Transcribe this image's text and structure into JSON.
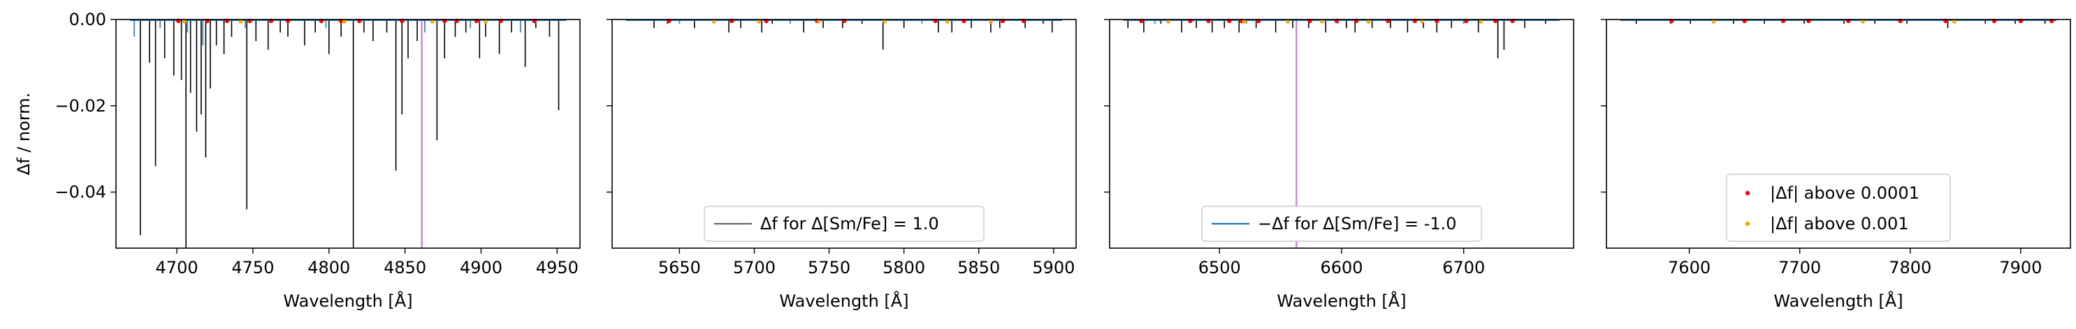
{
  "figure": {
    "ylabel": "Δf / norm.",
    "xlabel": "Wavelength [Å]"
  },
  "colors": {
    "delta_positive": "#000000",
    "delta_negative": "#1f77b4",
    "marker_above_1e4": "#ff0000",
    "marker_above_1e3": "#ffa500",
    "vline": "#cc79d6"
  },
  "chart_data": [
    {
      "type": "line",
      "panel": 1,
      "xlim": [
        4660,
        4965
      ],
      "ylim": [
        -0.053,
        0.0
      ],
      "xticks": [
        4700,
        4750,
        4800,
        4850,
        4900,
        4950
      ],
      "yticks": [
        0.0,
        -0.02,
        -0.04
      ],
      "ytick_labels": [
        "0.00",
        "−0.02",
        "−0.04"
      ],
      "xlabel": "Wavelength [Å]",
      "ylabel": "Δf / norm.",
      "vline": 4861,
      "lines": [
        {
          "x": 4676,
          "y": -0.05
        },
        {
          "x": 4682,
          "y": -0.01
        },
        {
          "x": 4686,
          "y": -0.034
        },
        {
          "x": 4692,
          "y": -0.009
        },
        {
          "x": 4698,
          "y": -0.013
        },
        {
          "x": 4703,
          "y": -0.014
        },
        {
          "x": 4706,
          "y": -0.053
        },
        {
          "x": 4709,
          "y": -0.017
        },
        {
          "x": 4713,
          "y": -0.026
        },
        {
          "x": 4716,
          "y": -0.022
        },
        {
          "x": 4719,
          "y": -0.032
        },
        {
          "x": 4722,
          "y": -0.016
        },
        {
          "x": 4726,
          "y": -0.006
        },
        {
          "x": 4731,
          "y": -0.008
        },
        {
          "x": 4736,
          "y": -0.004
        },
        {
          "x": 4746,
          "y": -0.044
        },
        {
          "x": 4752,
          "y": -0.005
        },
        {
          "x": 4760,
          "y": -0.007
        },
        {
          "x": 4768,
          "y": -0.003
        },
        {
          "x": 4773,
          "y": -0.004
        },
        {
          "x": 4784,
          "y": -0.006
        },
        {
          "x": 4791,
          "y": -0.003
        },
        {
          "x": 4800,
          "y": -0.008
        },
        {
          "x": 4808,
          "y": -0.004
        },
        {
          "x": 4816,
          "y": -0.053
        },
        {
          "x": 4823,
          "y": -0.003
        },
        {
          "x": 4829,
          "y": -0.005
        },
        {
          "x": 4838,
          "y": -0.003
        },
        {
          "x": 4844,
          "y": -0.035
        },
        {
          "x": 4848,
          "y": -0.022
        },
        {
          "x": 4852,
          "y": -0.009
        },
        {
          "x": 4858,
          "y": -0.005
        },
        {
          "x": 4871,
          "y": -0.028
        },
        {
          "x": 4876,
          "y": -0.009
        },
        {
          "x": 4883,
          "y": -0.004
        },
        {
          "x": 4890,
          "y": -0.003
        },
        {
          "x": 4899,
          "y": -0.009
        },
        {
          "x": 4903,
          "y": -0.004
        },
        {
          "x": 4912,
          "y": -0.008
        },
        {
          "x": 4920,
          "y": -0.003
        },
        {
          "x": 4929,
          "y": -0.011
        },
        {
          "x": 4936,
          "y": -0.002
        },
        {
          "x": 4945,
          "y": -0.004
        },
        {
          "x": 4951,
          "y": -0.021
        }
      ],
      "neg_lines": [
        {
          "x": 4672,
          "y": -0.004
        },
        {
          "x": 4689,
          "y": -0.002
        },
        {
          "x": 4707,
          "y": -0.003
        },
        {
          "x": 4717,
          "y": -0.006
        },
        {
          "x": 4745,
          "y": -0.002
        },
        {
          "x": 4798,
          "y": -0.002
        },
        {
          "x": 4863,
          "y": -0.003
        },
        {
          "x": 4893,
          "y": -0.002
        },
        {
          "x": 4926,
          "y": -0.003
        }
      ],
      "red_markers": [
        4701,
        4720,
        4733,
        4748,
        4762,
        4773,
        4795,
        4808,
        4820,
        4848,
        4876,
        4884,
        4897,
        4913,
        4935
      ],
      "orange_markers": [
        4705,
        4742,
        4810,
        4868,
        4903
      ]
    },
    {
      "type": "line",
      "panel": 2,
      "xlim": [
        5605,
        5915
      ],
      "ylim": [
        -0.053,
        0.0
      ],
      "xticks": [
        5650,
        5700,
        5750,
        5800,
        5850,
        5900
      ],
      "xlabel": "Wavelength [Å]",
      "lines": [
        {
          "x": 5633,
          "y": -0.002
        },
        {
          "x": 5642,
          "y": -0.001
        },
        {
          "x": 5660,
          "y": -0.002
        },
        {
          "x": 5683,
          "y": -0.003
        },
        {
          "x": 5691,
          "y": -0.002
        },
        {
          "x": 5705,
          "y": -0.003
        },
        {
          "x": 5712,
          "y": -0.001
        },
        {
          "x": 5733,
          "y": -0.003
        },
        {
          "x": 5746,
          "y": -0.002
        },
        {
          "x": 5759,
          "y": -0.002
        },
        {
          "x": 5772,
          "y": -0.001
        },
        {
          "x": 5786,
          "y": -0.007
        },
        {
          "x": 5800,
          "y": -0.002
        },
        {
          "x": 5823,
          "y": -0.003
        },
        {
          "x": 5832,
          "y": -0.003
        },
        {
          "x": 5845,
          "y": -0.002
        },
        {
          "x": 5858,
          "y": -0.003
        },
        {
          "x": 5864,
          "y": -0.002
        },
        {
          "x": 5881,
          "y": -0.002
        },
        {
          "x": 5893,
          "y": -0.001
        },
        {
          "x": 5899,
          "y": -0.003
        }
      ],
      "neg_lines": [
        {
          "x": 5650,
          "y": -0.001
        },
        {
          "x": 5724,
          "y": -0.001
        },
        {
          "x": 5812,
          "y": -0.001
        }
      ],
      "red_markers": [
        5643,
        5685,
        5708,
        5742,
        5760,
        5821,
        5840,
        5866,
        5880
      ],
      "orange_markers": [
        5673,
        5703,
        5743,
        5787,
        5829,
        5858
      ],
      "legend": {
        "label": "Δf for Δ[Sm/Fe] = 1.0",
        "position": "lower center"
      }
    },
    {
      "type": "line",
      "panel": 3,
      "xlim": [
        6410,
        6790
      ],
      "ylim": [
        -0.053,
        0.0
      ],
      "xticks": [
        6500,
        6600,
        6700
      ],
      "xlabel": "Wavelength [Å]",
      "vline": 6563,
      "lines": [
        {
          "x": 6425,
          "y": -0.002
        },
        {
          "x": 6438,
          "y": -0.003
        },
        {
          "x": 6452,
          "y": -0.001
        },
        {
          "x": 6469,
          "y": -0.003
        },
        {
          "x": 6481,
          "y": -0.002
        },
        {
          "x": 6494,
          "y": -0.003
        },
        {
          "x": 6504,
          "y": -0.002
        },
        {
          "x": 6516,
          "y": -0.003
        },
        {
          "x": 6530,
          "y": -0.002
        },
        {
          "x": 6546,
          "y": -0.003
        },
        {
          "x": 6560,
          "y": -0.002
        },
        {
          "x": 6573,
          "y": -0.002
        },
        {
          "x": 6587,
          "y": -0.003
        },
        {
          "x": 6604,
          "y": -0.002
        },
        {
          "x": 6611,
          "y": -0.003
        },
        {
          "x": 6625,
          "y": -0.002
        },
        {
          "x": 6640,
          "y": -0.002
        },
        {
          "x": 6654,
          "y": -0.003
        },
        {
          "x": 6667,
          "y": -0.002
        },
        {
          "x": 6678,
          "y": -0.003
        },
        {
          "x": 6690,
          "y": -0.002
        },
        {
          "x": 6712,
          "y": -0.003
        },
        {
          "x": 6728,
          "y": -0.009
        },
        {
          "x": 6733,
          "y": -0.007
        },
        {
          "x": 6750,
          "y": -0.002
        },
        {
          "x": 6767,
          "y": -0.001
        }
      ],
      "neg_lines": [
        {
          "x": 6447,
          "y": -0.001
        },
        {
          "x": 6522,
          "y": -0.001
        },
        {
          "x": 6597,
          "y": -0.001
        },
        {
          "x": 6700,
          "y": -0.001
        }
      ],
      "red_markers": [
        6436,
        6476,
        6491,
        6508,
        6518,
        6532,
        6574,
        6596,
        6612,
        6638,
        6660,
        6678,
        6702,
        6726,
        6740
      ],
      "orange_markers": [
        6458,
        6520,
        6556,
        6584,
        6622,
        6666,
        6714
      ],
      "legend": {
        "label": "−Δf for Δ[Sm/Fe] = -1.0",
        "position": "lower center"
      }
    },
    {
      "type": "line",
      "panel": 4,
      "xlim": [
        7525,
        7945
      ],
      "ylim": [
        -0.053,
        0.0
      ],
      "xticks": [
        7600,
        7700,
        7800,
        7900
      ],
      "xlabel": "Wavelength [Å]",
      "lines": [
        {
          "x": 7552,
          "y": -0.001
        },
        {
          "x": 7583,
          "y": -0.001
        },
        {
          "x": 7601,
          "y": -0.001
        },
        {
          "x": 7640,
          "y": -0.001
        },
        {
          "x": 7668,
          "y": -0.001
        },
        {
          "x": 7704,
          "y": -0.001
        },
        {
          "x": 7740,
          "y": -0.001
        },
        {
          "x": 7768,
          "y": -0.001
        },
        {
          "x": 7797,
          "y": -0.001
        },
        {
          "x": 7834,
          "y": -0.002
        },
        {
          "x": 7868,
          "y": -0.001
        },
        {
          "x": 7895,
          "y": -0.001
        },
        {
          "x": 7922,
          "y": -0.001
        }
      ],
      "neg_lines": [],
      "red_markers": [
        7584,
        7650,
        7685,
        7708,
        7744,
        7791,
        7832,
        7876,
        7900,
        7928
      ],
      "orange_markers": [
        7622,
        7757,
        7840
      ],
      "legend_markers": [
        {
          "label": "|Δf| above 0.0001",
          "color": "#ff0000"
        },
        {
          "label": "|Δf| above 0.001",
          "color": "#ffa500"
        }
      ]
    }
  ]
}
